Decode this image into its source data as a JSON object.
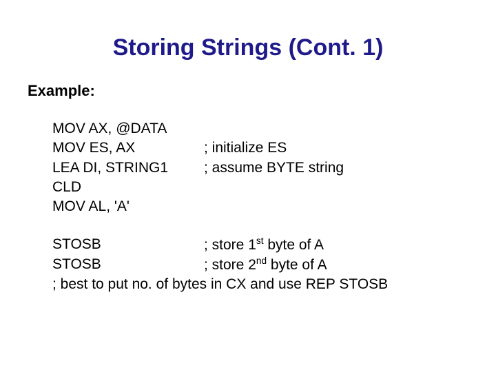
{
  "title": {
    "text": "Storing Strings (Cont. 1)",
    "color": "#1f1a8a",
    "fontsize": 34,
    "weight": "bold",
    "align": "center"
  },
  "subhead": {
    "text": "Example:",
    "fontsize": 22,
    "weight": "bold"
  },
  "body_fontsize": 21,
  "block1": {
    "rows": [
      {
        "instr": "MOV AX, @DATA",
        "comment": ""
      },
      {
        "instr": "MOV ES, AX",
        "comment": " ; initialize ES"
      },
      {
        "instr": "LEA DI, STRING1",
        "comment": "; assume BYTE string"
      },
      {
        "instr": "CLD",
        "comment": ""
      },
      {
        "instr": "MOV AL, 'A'",
        "comment": ""
      }
    ]
  },
  "block2": {
    "rows": [
      {
        "instr": "STOSB",
        "comment_pre": "; store 1",
        "sup": "st",
        "comment_post": " byte of A"
      },
      {
        "instr": "STOSB",
        "comment_pre": "; store 2",
        "sup": "nd",
        "comment_post": " byte of A"
      }
    ]
  },
  "footer": {
    "text": "; best to put no. of bytes in CX and use REP STOSB"
  },
  "colors": {
    "title": "#1f1a8a",
    "body": "#000000",
    "background": "#ffffff"
  }
}
